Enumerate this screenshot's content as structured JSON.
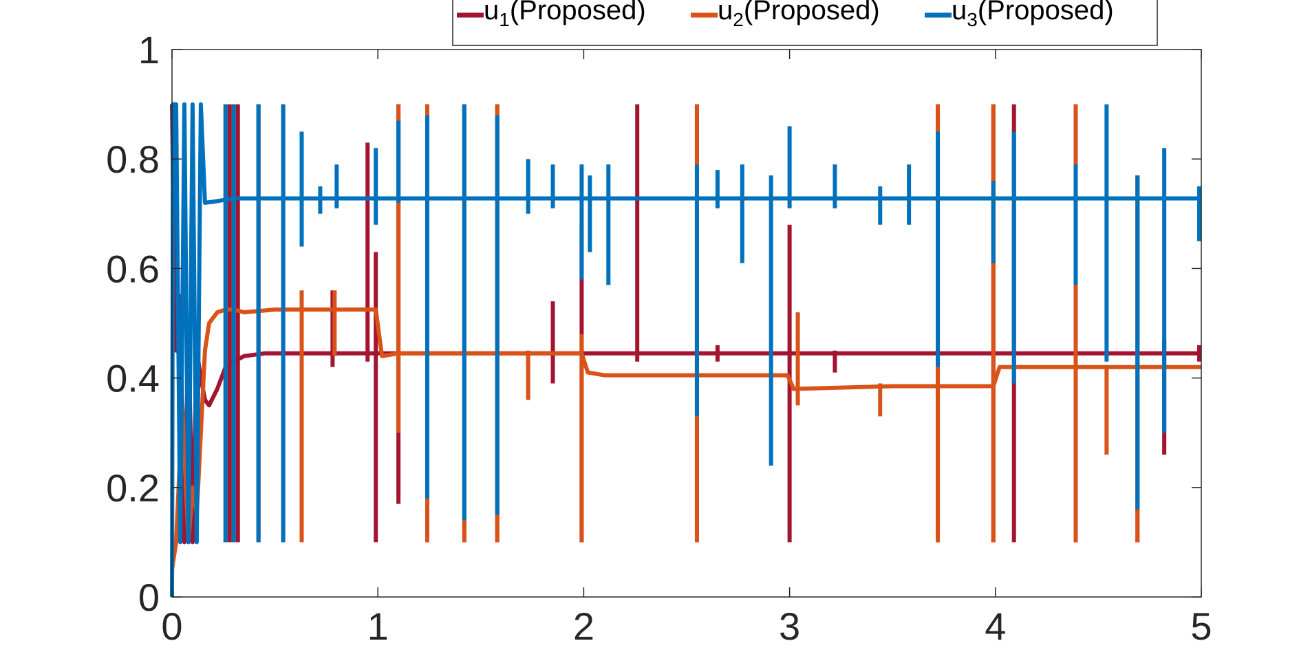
{
  "chart_data": {
    "type": "line",
    "title": "",
    "xlabel": "",
    "ylabel": "",
    "xlim": [
      0,
      5
    ],
    "ylim": [
      0,
      1
    ],
    "xticks": [
      "0",
      "1",
      "2",
      "3",
      "4",
      "5"
    ],
    "yticks": [
      "0",
      "0.2",
      "0.4",
      "0.6",
      "0.8",
      "1"
    ],
    "grid": false,
    "legend_position": "top-right, outside axes, horizontal",
    "series": [
      {
        "name": "u1(Proposed)",
        "label_main": "u",
        "label_sub": "1",
        "label_rest": "(Proposed)",
        "color": "#A2142F",
        "points": [
          [
            0,
            0.9
          ],
          [
            0.01,
            0.6
          ],
          [
            0.02,
            0.45
          ],
          [
            0.04,
            0.55
          ],
          [
            0.06,
            0.1
          ],
          [
            0.08,
            0.5
          ],
          [
            0.1,
            0.1
          ],
          [
            0.12,
            0.45
          ],
          [
            0.14,
            0.4
          ],
          [
            0.16,
            0.36
          ],
          [
            0.18,
            0.35
          ],
          [
            0.22,
            0.38
          ],
          [
            0.26,
            0.42
          ],
          [
            0.3,
            0.43
          ],
          [
            0.35,
            0.44
          ],
          [
            0.45,
            0.445
          ],
          [
            0.6,
            0.445
          ],
          [
            0.8,
            0.445
          ],
          [
            1.0,
            0.445
          ],
          [
            1.5,
            0.445
          ],
          [
            2.0,
            0.445
          ],
          [
            2.5,
            0.445
          ],
          [
            3.0,
            0.445
          ],
          [
            3.5,
            0.445
          ],
          [
            4.0,
            0.445
          ],
          [
            4.5,
            0.445
          ],
          [
            5.0,
            0.445
          ]
        ],
        "spikes": [
          [
            0.28,
            0.1,
            0.9
          ],
          [
            0.32,
            0.1,
            0.9
          ],
          [
            0.42,
            0.1,
            0.9
          ],
          [
            0.54,
            0.1,
            0.9
          ],
          [
            0.78,
            0.42,
            0.56
          ],
          [
            0.95,
            0.43,
            0.83
          ],
          [
            0.99,
            0.1,
            0.63
          ],
          [
            1.1,
            0.17,
            0.9
          ],
          [
            1.24,
            0.1,
            0.9
          ],
          [
            1.42,
            0.1,
            0.9
          ],
          [
            1.58,
            0.1,
            0.9
          ],
          [
            1.85,
            0.39,
            0.54
          ],
          [
            1.99,
            0.1,
            0.68
          ],
          [
            2.26,
            0.43,
            0.9
          ],
          [
            2.55,
            0.1,
            0.9
          ],
          [
            2.65,
            0.43,
            0.46
          ],
          [
            3.0,
            0.1,
            0.68
          ],
          [
            3.22,
            0.41,
            0.45
          ],
          [
            3.72,
            0.1,
            0.9
          ],
          [
            3.99,
            0.1,
            0.9
          ],
          [
            4.09,
            0.1,
            0.9
          ],
          [
            4.39,
            0.1,
            0.9
          ],
          [
            4.69,
            0.1,
            0.77
          ],
          [
            4.82,
            0.26,
            0.47
          ],
          [
            4.99,
            0.43,
            0.46
          ]
        ]
      },
      {
        "name": "u2(Proposed)",
        "label_main": "u",
        "label_sub": "2",
        "label_rest": "(Proposed)",
        "color": "#D95319",
        "points": [
          [
            0,
            0.05
          ],
          [
            0.02,
            0.1
          ],
          [
            0.05,
            0.35
          ],
          [
            0.08,
            0.1
          ],
          [
            0.1,
            0.2
          ],
          [
            0.12,
            0.15
          ],
          [
            0.14,
            0.3
          ],
          [
            0.16,
            0.45
          ],
          [
            0.18,
            0.5
          ],
          [
            0.22,
            0.52
          ],
          [
            0.26,
            0.525
          ],
          [
            0.3,
            0.525
          ],
          [
            0.35,
            0.52
          ],
          [
            0.5,
            0.525
          ],
          [
            0.7,
            0.525
          ],
          [
            0.99,
            0.525
          ],
          [
            1.02,
            0.44
          ],
          [
            1.1,
            0.445
          ],
          [
            1.5,
            0.445
          ],
          [
            1.99,
            0.445
          ],
          [
            2.02,
            0.41
          ],
          [
            2.1,
            0.405
          ],
          [
            2.5,
            0.405
          ],
          [
            2.99,
            0.405
          ],
          [
            3.02,
            0.38
          ],
          [
            3.5,
            0.385
          ],
          [
            3.99,
            0.385
          ],
          [
            4.02,
            0.42
          ],
          [
            4.1,
            0.42
          ],
          [
            4.5,
            0.42
          ],
          [
            5.0,
            0.42
          ]
        ],
        "spikes": [
          [
            0.26,
            0.1,
            0.9
          ],
          [
            0.3,
            0.1,
            0.9
          ],
          [
            0.42,
            0.1,
            0.9
          ],
          [
            0.54,
            0.1,
            0.9
          ],
          [
            0.63,
            0.1,
            0.56
          ],
          [
            0.79,
            0.44,
            0.56
          ],
          [
            1.1,
            0.3,
            0.9
          ],
          [
            1.24,
            0.1,
            0.9
          ],
          [
            1.42,
            0.1,
            0.9
          ],
          [
            1.58,
            0.1,
            0.9
          ],
          [
            1.73,
            0.36,
            0.45
          ],
          [
            1.99,
            0.1,
            0.48
          ],
          [
            2.55,
            0.1,
            0.9
          ],
          [
            3.04,
            0.35,
            0.52
          ],
          [
            3.44,
            0.33,
            0.39
          ],
          [
            3.72,
            0.1,
            0.9
          ],
          [
            3.99,
            0.1,
            0.9
          ],
          [
            4.39,
            0.1,
            0.9
          ],
          [
            4.54,
            0.26,
            0.42
          ],
          [
            4.69,
            0.1,
            0.77
          ]
        ]
      },
      {
        "name": "u3(Proposed)",
        "label_main": "u",
        "label_sub": "3",
        "label_rest": "(Proposed)",
        "color": "#0072BD",
        "points": [
          [
            0,
            0
          ],
          [
            0.005,
            0.9
          ],
          [
            0.02,
            0.9
          ],
          [
            0.04,
            0.1
          ],
          [
            0.06,
            0.9
          ],
          [
            0.08,
            0.1
          ],
          [
            0.1,
            0.9
          ],
          [
            0.12,
            0.1
          ],
          [
            0.14,
            0.9
          ],
          [
            0.16,
            0.72
          ],
          [
            0.2,
            0.722
          ],
          [
            0.25,
            0.725
          ],
          [
            0.3,
            0.728
          ],
          [
            0.4,
            0.728
          ],
          [
            0.6,
            0.728
          ],
          [
            1.0,
            0.728
          ],
          [
            1.5,
            0.728
          ],
          [
            2.0,
            0.728
          ],
          [
            2.5,
            0.728
          ],
          [
            3.0,
            0.728
          ],
          [
            3.5,
            0.728
          ],
          [
            4.0,
            0.728
          ],
          [
            4.5,
            0.728
          ],
          [
            5.0,
            0.728
          ]
        ],
        "spikes": [
          [
            0.26,
            0.1,
            0.9
          ],
          [
            0.3,
            0.1,
            0.9
          ],
          [
            0.42,
            0.1,
            0.9
          ],
          [
            0.54,
            0.1,
            0.9
          ],
          [
            0.63,
            0.64,
            0.85
          ],
          [
            0.72,
            0.7,
            0.75
          ],
          [
            0.8,
            0.71,
            0.79
          ],
          [
            0.99,
            0.68,
            0.82
          ],
          [
            1.1,
            0.72,
            0.87
          ],
          [
            1.24,
            0.18,
            0.88
          ],
          [
            1.42,
            0.14,
            0.9
          ],
          [
            1.58,
            0.15,
            0.88
          ],
          [
            1.73,
            0.7,
            0.8
          ],
          [
            1.85,
            0.71,
            0.79
          ],
          [
            1.99,
            0.58,
            0.79
          ],
          [
            2.03,
            0.63,
            0.77
          ],
          [
            2.12,
            0.57,
            0.79
          ],
          [
            2.55,
            0.33,
            0.79
          ],
          [
            2.65,
            0.71,
            0.78
          ],
          [
            2.77,
            0.61,
            0.79
          ],
          [
            2.91,
            0.24,
            0.77
          ],
          [
            3.0,
            0.71,
            0.86
          ],
          [
            3.22,
            0.71,
            0.79
          ],
          [
            3.44,
            0.68,
            0.75
          ],
          [
            3.58,
            0.68,
            0.79
          ],
          [
            3.72,
            0.42,
            0.85
          ],
          [
            3.99,
            0.61,
            0.76
          ],
          [
            4.09,
            0.39,
            0.85
          ],
          [
            4.39,
            0.57,
            0.79
          ],
          [
            4.54,
            0.43,
            0.9
          ],
          [
            4.69,
            0.16,
            0.77
          ],
          [
            4.82,
            0.3,
            0.82
          ],
          [
            4.99,
            0.65,
            0.75
          ]
        ]
      }
    ]
  }
}
